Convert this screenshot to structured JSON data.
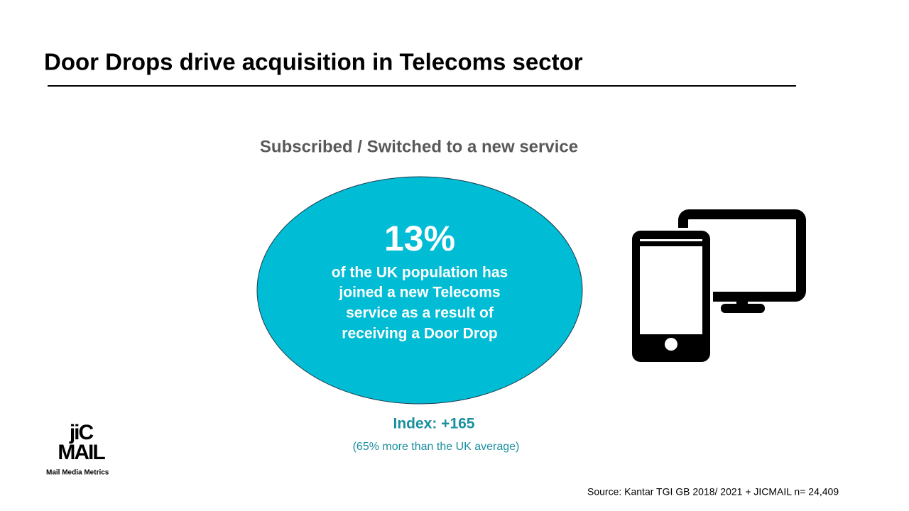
{
  "header": {
    "title": "Door Drops drive acquisition in Telecoms sector"
  },
  "subtitle": "Subscribed / Switched to a new service",
  "callout": {
    "stat": "13%",
    "lines": [
      "of the UK population has",
      "joined a new Telecoms",
      "service as a result of",
      "receiving a Door Drop"
    ]
  },
  "index": {
    "label": "Index: +165",
    "note": "(65% more than the UK average)"
  },
  "logo": {
    "lines": [
      "jiC",
      "MAIL"
    ],
    "tagline": "Mail Media Metrics"
  },
  "source": "Source:  Kantar TGI GB 2018/ 2021 + JICMAIL  n= 24,409"
}
